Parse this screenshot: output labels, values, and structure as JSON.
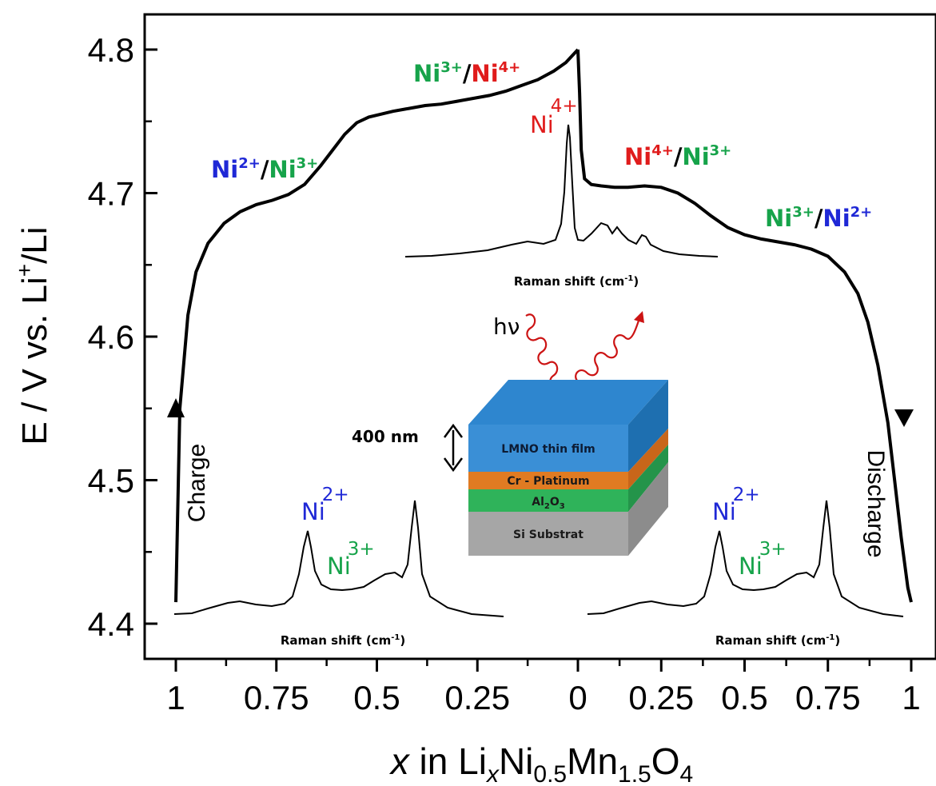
{
  "chart_data": {
    "type": "line",
    "ylabel_main": "E / V vs. Li",
    "ylabel_sup": "+",
    "ylabel_tail": "/Li",
    "xlabel": {
      "x": "x",
      "in": " in Li",
      "sub_x": "x",
      "ni": "Ni",
      "sub_05": "0.5",
      "mn": "Mn",
      "sub_15": "1.5",
      "o": "O",
      "sub_4": "4"
    },
    "ylim": [
      4.4,
      4.8
    ],
    "yticks": [
      "4.4",
      "4.5",
      "4.6",
      "4.7",
      "4.8"
    ],
    "xtick_labels": [
      "1",
      "0.75",
      "0.5",
      "0.25",
      "0",
      "0.25",
      "0.5",
      "0.75",
      "1"
    ],
    "x_axis_note": "charge from x=1 to 0, then discharge from 0 to 1",
    "series": [
      {
        "segment": "charge",
        "x": [
          1.0,
          0.99,
          0.97,
          0.95,
          0.92,
          0.88,
          0.84,
          0.8,
          0.76,
          0.72,
          0.68,
          0.64,
          0.61,
          0.58,
          0.55,
          0.52,
          0.49,
          0.46,
          0.42,
          0.38,
          0.34,
          0.3,
          0.26,
          0.22,
          0.18,
          0.14,
          0.1,
          0.06,
          0.03,
          0.0
        ],
        "y": [
          4.415,
          4.55,
          4.615,
          4.645,
          4.665,
          4.679,
          4.687,
          4.692,
          4.695,
          4.699,
          4.706,
          4.719,
          4.73,
          4.741,
          4.749,
          4.753,
          4.755,
          4.757,
          4.759,
          4.761,
          4.762,
          4.764,
          4.766,
          4.768,
          4.771,
          4.775,
          4.779,
          4.785,
          4.791,
          4.8
        ]
      },
      {
        "segment": "discharge",
        "x": [
          0.0,
          0.005,
          0.01,
          0.02,
          0.04,
          0.07,
          0.11,
          0.15,
          0.2,
          0.25,
          0.3,
          0.35,
          0.4,
          0.45,
          0.5,
          0.55,
          0.6,
          0.65,
          0.7,
          0.75,
          0.8,
          0.84,
          0.87,
          0.9,
          0.93,
          0.95,
          0.97,
          0.99,
          1.0
        ],
        "y": [
          4.8,
          4.77,
          4.73,
          4.71,
          4.706,
          4.705,
          4.704,
          4.704,
          4.705,
          4.704,
          4.7,
          4.693,
          4.684,
          4.676,
          4.671,
          4.668,
          4.666,
          4.664,
          4.661,
          4.656,
          4.645,
          4.63,
          4.61,
          4.58,
          4.54,
          4.5,
          4.46,
          4.425,
          4.415
        ]
      }
    ],
    "grid": false,
    "legend": "none",
    "colors": {
      "ni2": "#1f28d6",
      "ni3": "#16a34a",
      "ni4": "#e01c1c",
      "curve": "#000000",
      "photon": "#cc1414",
      "film_top": "#2e86cf",
      "film_side": "#1e6fb0",
      "film_front": "#3a8fd6",
      "cr_pt": "#e07b22",
      "al2o3": "#2fb35a",
      "si": "#a6a6a6"
    },
    "annotations": {
      "charge": "Charge",
      "discharge": "Discharge",
      "ni": "Ni",
      "c2": "2+",
      "c3": "3+",
      "c4": "4+",
      "slash": "/",
      "raman": "Raman shift (cm",
      "raman_sup": "-1",
      "raman_close": ")",
      "hv": "hν",
      "thickness": "400 nm",
      "layers": {
        "lmno": "LMNO thin film",
        "crpt": "Cr - Platinum",
        "al_main": "Al",
        "al_sub2": "2",
        "al_o": "O",
        "al_sub3": "3",
        "si": "Si Substrat"
      }
    }
  }
}
